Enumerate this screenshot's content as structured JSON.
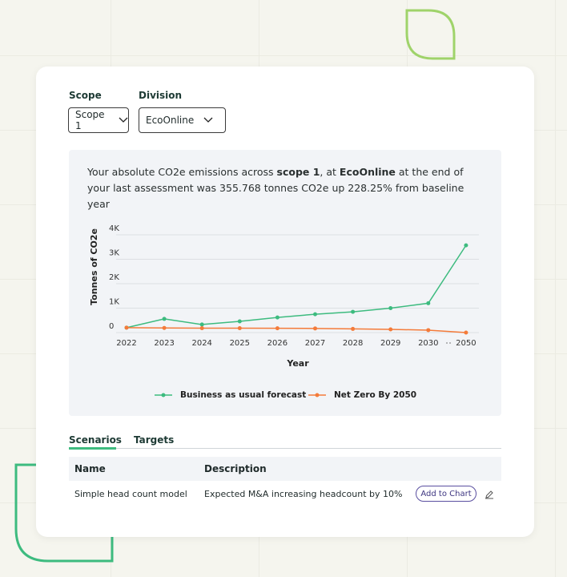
{
  "filters": [
    {
      "label": "Scope",
      "value": "Scope 1"
    },
    {
      "label": "Division",
      "value": "EcoOnline"
    }
  ],
  "summary": {
    "parts": [
      "Your absolute CO2e emissions across ",
      "scope 1",
      ", at ",
      "EcoOnline",
      " at the end of your last assessment was 355.768 tonnes CO2e up 228.25% from baseline year"
    ]
  },
  "chart_data": {
    "type": "line",
    "categories": [
      "2022",
      "2023",
      "2024",
      "2025",
      "2026",
      "2027",
      "2028",
      "2029",
      "2030",
      "2050"
    ],
    "series": [
      {
        "name": "Business as usual forecast",
        "color": "#3dbb7f",
        "values": [
          200,
          560,
          330,
          460,
          620,
          750,
          850,
          1000,
          1200,
          3570
        ]
      },
      {
        "name": "Net Zero By 2050",
        "color": "#f47b3a",
        "values": [
          200,
          190,
          180,
          180,
          175,
          170,
          150,
          130,
          100,
          0
        ]
      }
    ],
    "ylim": [
      0,
      4000
    ],
    "yticks": [
      0,
      {
        "value": 1000,
        "label": "1K"
      },
      {
        "value": 2000,
        "label": "2K"
      },
      {
        "value": 3000,
        "label": "3K"
      },
      {
        "value": 4000,
        "label": "4K"
      }
    ],
    "ylabel": "Tonnes of CO2e",
    "xlabel": "Year",
    "grid": true,
    "legend": "bottom"
  },
  "tabs": [
    "Scenarios",
    "Targets"
  ],
  "table": {
    "headers": [
      "Name",
      "Description"
    ],
    "rows": [
      [
        "Simple head count model",
        "Expected M&A increasing headcount by 10%"
      ]
    ]
  },
  "row_action": "Add to Chart"
}
